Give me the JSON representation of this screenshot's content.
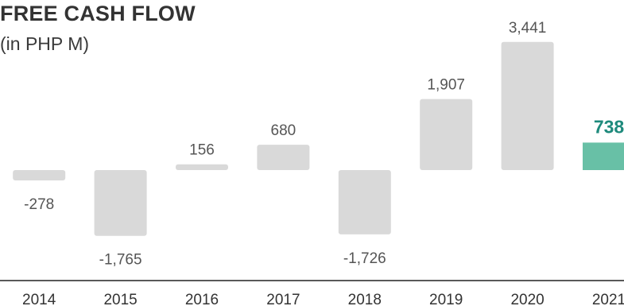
{
  "chart_data": {
    "type": "bar",
    "title": "FREE CASH FLOW",
    "subtitle": "(in PHP M)",
    "categories": [
      "2014",
      "2015",
      "2016",
      "2017",
      "2018",
      "2019",
      "2020",
      "2021"
    ],
    "values": [
      -278,
      -1765,
      156,
      680,
      -1726,
      1907,
      3441,
      738
    ],
    "value_labels": [
      "-278",
      "-1,765",
      "156",
      "680",
      "-1,726",
      "1,907",
      "3,441",
      "738"
    ],
    "highlight_index": 7,
    "ylim": [
      -1900,
      3700
    ],
    "grid": false,
    "legend": "none"
  },
  "colors": {
    "bar": "#d9d9d9",
    "highlight_bar": "#68c0a6",
    "label": "#555555",
    "highlight_label": "#1e8a7c",
    "axis": "#222222"
  }
}
